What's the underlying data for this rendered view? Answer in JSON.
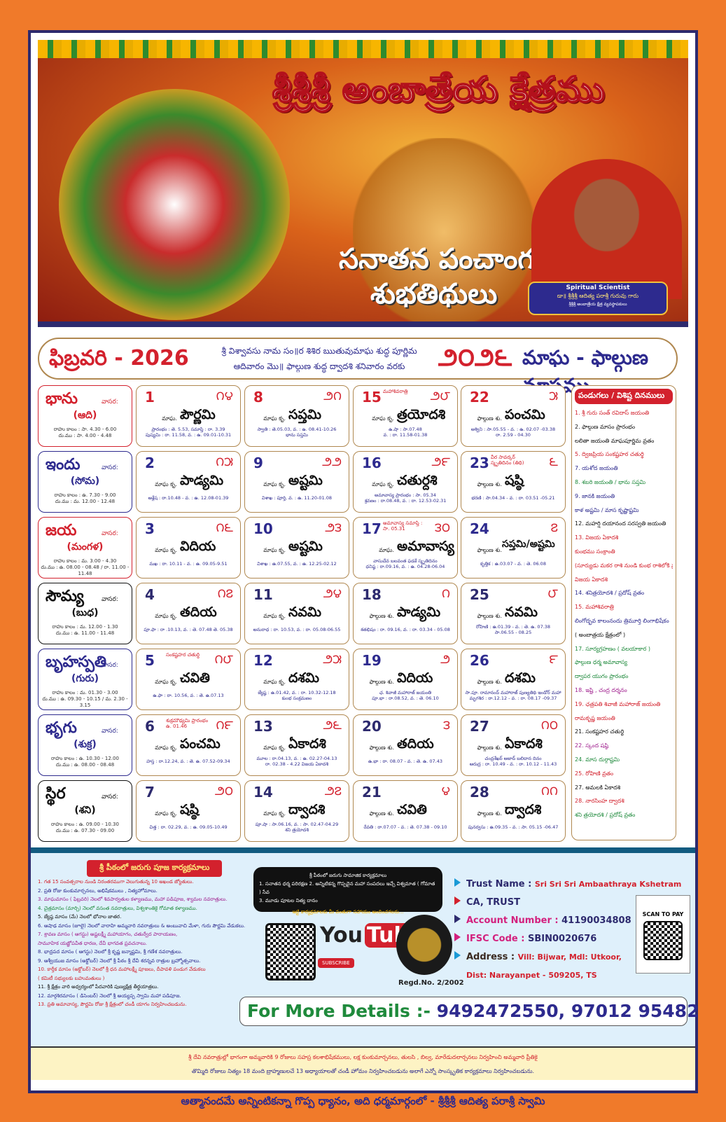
{
  "header": {
    "title": "శ్రీశ్రీశ్రీ అంబాత్రేయ క్షేత్రము",
    "subtitle1": "సనాతన పంచాంగ",
    "subtitle2": "శుభతిథులు",
    "badge_title": "Spiritual Scientist",
    "badge_name": "డా॥ శ్రీశ్రీశ్రీ ఆదిత్య పరాశ్రీ గురువు గారు",
    "badge_role": "శ్రీశ్రీశ్రీ అంబాత్రేయ క్షేత్ర వ్యవస్థాపకులు"
  },
  "month_bar": {
    "month": "ఫిబ్రవరి - 2026",
    "desc1": "శ్రీ విశ్వావసు నామ సం॥ర శిశిర ఋతువుమాఘ శుద్ధ పూర్ణిమ",
    "desc2": "ఆదివారం మొ॥ ఫాల్గుణ శుద్ధ ద్వాదశి శనివారం వరకు",
    "telugu_year": "౨౦౨౬",
    "telugu_months": "మాఘ - ఫాల్గుణ మాసము"
  },
  "weekdays": [
    {
      "name": "భాను",
      "vasara": "వాసర:",
      "short": "(ఆది)",
      "color": "#d3212d",
      "rahu": "రాహు కాలం : సా. 4.30 - 6.00",
      "dur": "దు.ము : సా. 4.00 - 4.48"
    },
    {
      "name": "ఇందు",
      "vasara": "వాసర:",
      "short": "(సోమ)",
      "color": "#2d2a8e",
      "rahu": "రాహు కాలం : ఉ. 7.30 - 9.00",
      "dur": "దు.ము : మ. 12.00 - 12.48"
    },
    {
      "name": "జయ",
      "vasara": "వాసర:",
      "short": "(మంగళ)",
      "color": "#d3212d",
      "rahu": "రాహు కాలం : మ. 3.00 - 4.30",
      "dur": "దు.ము : ఉ. 08.00 - 08.48 / రా. 11.00 - 11.48"
    },
    {
      "name": "సౌమ్య",
      "vasara": "వాసర:",
      "short": "(బుధ)",
      "color": "#111111",
      "rahu": "రాహు కాలం : మ. 12.00 - 1.30",
      "dur": "దు.ము : ఉ. 11.00 - 11.48"
    },
    {
      "name": "బృహస్పతి",
      "vasara": "వాసర:",
      "short": "(గురు)",
      "color": "#2d2a8e",
      "rahu": "రాహు కాలం : మ. 01.30 - 3.00",
      "dur": "దు.ము : ఉ. 09.30 - 10.15 / మ. 2.30 - 3.15"
    },
    {
      "name": "భృగు",
      "vasara": "వాసర:",
      "short": "(శుక్ర)",
      "color": "#2d2a8e",
      "rahu": "రాహు కాలం : ఉ. 10.30 - 12.00",
      "dur": "దు.ము : ఉ. 08.00 - 08.48"
    },
    {
      "name": "స్థిర",
      "vasara": "వాసర:",
      "short": "(శని)",
      "color": "#111111",
      "rahu": "రాహు కాలం : ఉ. 09.00 - 10.30",
      "dur": "దు.ము : ఉ. 07.30 - 09.00"
    }
  ],
  "weeks": [
    [
      {
        "d": "1",
        "t": "౧౪",
        "m": "మాఘ.",
        "tithi": "పౌర్ణమి",
        "note": "",
        "det1": "ప్రారంభం : తె. 5.53, సమాప్తి : రా. 3.39",
        "det2": "పుష్యమి : రా. 11.58, వ. : ఉ. 09.01-10.31"
      },
      {
        "d": "8",
        "t": "౨౧",
        "m": "మాఘ కృ.",
        "tithi": "సప్తమి",
        "note": "",
        "det1": "స్వాతి : తె.05.03, వ. : ఉ. 08.41-10.26",
        "det2": "భాను సప్తమి"
      },
      {
        "d": "15",
        "t": "౨౮",
        "m": "మాఘ కృ.",
        "tithi": "త్రయోదశి",
        "note": "మహాశివరాత్రి",
        "det1": "ఉ.షా : సా.07.48",
        "det2": "వ. : రా. 11.58-01.38"
      },
      {
        "d": "22",
        "t": "౫",
        "m": "ఫాల్గుణ శు.",
        "tithi": "పంచమి",
        "note": "",
        "det1": "అశ్విని : సా.05.55 - వ. : ఉ. 02.07 -03.38",
        "det2": "రా. 2.59 - 04.30"
      }
    ],
    [
      {
        "d": "2",
        "t": "౧౫",
        "m": "మాఘ కృ.",
        "tithi": "పాడ్యమి",
        "note": "",
        "det1": "ఆశ్లేష : రా.10.48 - వ. : ఉ. 12.08-01.39",
        "det2": ""
      },
      {
        "d": "9",
        "t": "౨౨",
        "m": "మాఘ కృ.",
        "tithi": "అష్టమి",
        "note": "",
        "det1": "విశాఖ : పూర్తి, వ. : ఉ. 11.20-01.08",
        "det2": ""
      },
      {
        "d": "16",
        "t": "౨౯",
        "m": "మాఘ కృ.",
        "tithi": "చతుర్దశి",
        "note": "",
        "det1": "అమావాస్య ప్రారంభం : సా. 05.34",
        "det2": "శ్రవణం : రా.08.48, వ. : రా. 12.53-02.31"
      },
      {
        "d": "23",
        "t": "౬",
        "m": "ఫాల్గుణ శు.",
        "tithi": "షష్ఠి",
        "note": "వీర సావర్కర్ స్మృతిదినం (తిథి)",
        "det1": "భరణి : సా.04.34 - వ. : రా. 03.51 -05.21",
        "det2": ""
      }
    ],
    [
      {
        "d": "3",
        "t": "౧౬",
        "m": "మాఘ కృ.",
        "tithi": "విదియ",
        "note": "",
        "det1": "మఖ : రా. 10.11 - వ. : ఉ. 09.05-9.51",
        "det2": ""
      },
      {
        "d": "10",
        "t": "౨౩",
        "m": "మాఘ కృ.",
        "tithi": "అష్టమి",
        "note": "",
        "det1": "విశాఖ : ఉ.07.55, వ. : ఉ. 12.25-02.12",
        "det2": ""
      },
      {
        "d": "17",
        "t": "౩౦",
        "m": "మాఘ.",
        "tithi": "అమావాస్య",
        "note": "అమావాస్య సమాప్తి : సా. 05.31",
        "det1": "వాసుదేవ బలవంత ఫడకే స్మృతిదినం",
        "det2": "ధనిష్ఠ : రా.09.16, వ. : ఉ. 04.28-06.04"
      },
      {
        "d": "24",
        "t": "౭",
        "m": "ఫాల్గుణ శు.",
        "tithi": "సప్తమి/అష్టమి",
        "note": "",
        "det1": "కృత్తిక : ఉ.03.07 - వ. : తె. 06.08",
        "det2": ""
      }
    ],
    [
      {
        "d": "4",
        "t": "౧౭",
        "m": "మాఘ కృ.",
        "tithi": "తదియ",
        "note": "",
        "det1": "పూ.ఫా : రా .10.13, వ. : తె. 07.48 తె. 05.38",
        "det2": ""
      },
      {
        "d": "11",
        "t": "౨౪",
        "m": "మాఘ కృ.",
        "tithi": "నవమి",
        "note": "",
        "det1": "అనురాధ : రా. 10.53, వ. : రా. 05.08-06.55",
        "det2": ""
      },
      {
        "d": "18",
        "t": "౧",
        "m": "ఫాల్గుణ శు.",
        "tithi": "పాడ్యమి",
        "note": "",
        "det1": "శతభిషం : రా. 09.16, వ. : రా. 03.34 - 05.08",
        "det2": ""
      },
      {
        "d": "25",
        "t": "౮",
        "m": "ఫాల్గుణ శు.",
        "tithi": "నవమి",
        "note": "",
        "det1": "రోహిణి : ఉ.01.39 - వ. : తె. ఉ. 07.38",
        "det2": "సా.06.55 - 08.25"
      }
    ],
    [
      {
        "d": "5",
        "t": "౧౮",
        "m": "మాఘ కృ.",
        "tithi": "చవితి",
        "note": "సంకష్టహర చతుర్థి",
        "det1": "ఉ.ఫా : రా. 10.56, వ. : తె. ఉ.07.13",
        "det2": ""
      },
      {
        "d": "12",
        "t": "౨౫",
        "m": "మాఘ కృ.",
        "tithi": "దశమి",
        "note": "",
        "det1": "జ్యేష్ఠ : ఉ.01.42, వ. : రా. 10.32-12.18",
        "det2": "కుంభ సంక్రమణం"
      },
      {
        "d": "19",
        "t": "౨",
        "m": "ఫాల్గుణ శు.",
        "tithi": "విదియ",
        "note": "",
        "det1": "ఛ. శివాజీ మహారాజ్ జయంతి",
        "det2": "పూ.భా : రా.08.52, వ. : తె. 06.10"
      },
      {
        "d": "26",
        "t": "౯",
        "m": "ఫాల్గుణ శు.",
        "tithi": "దశమి",
        "note": "",
        "det1": "సా.పూ. రామానంద్ మహారాజ్ పుణ్యతిథి ఇండోర్ మహా",
        "det2": "మృగశిర : రా.12.12 - వ. : రా. 08.17 -09.37"
      }
    ],
    [
      {
        "d": "6",
        "t": "౧౯",
        "m": "మాఘ కృ.",
        "tithi": "పంచమి",
        "note": "శుక్రమౌఢ్యమి ప్రారంభం ఉ. 01.46",
        "det1": "హస్త : రా.12.24, వ. : తె. ఉ. 07.52-09.34",
        "det2": ""
      },
      {
        "d": "13",
        "t": "౨౬",
        "m": "మాఘ కృ.",
        "tithi": "ఏకాదశి",
        "note": "",
        "det1": "మూల : రా.04.13, వ. : ఉ. 02.27-04.13",
        "det2": "రా. 02.38 - 4.22 విజయ ఏకాదశి"
      },
      {
        "d": "20",
        "t": "౩",
        "m": "ఫాల్గుణ శు.",
        "tithi": "తదియ",
        "note": "",
        "det1": "ఉ.భా : రా. 08.07 - వ. : తె. ఉ. 07.43",
        "det2": ""
      },
      {
        "d": "27",
        "t": "౧౦",
        "m": "ఫాల్గుణ శు.",
        "tithi": "ఏకాదశి",
        "note": "",
        "det1": "చంద్రశేఖర్ ఆజాద్ బలిదాన దినం",
        "det2": "ఆరుద్ర : రా. 10.49 - వ. : రా. 10.12 - 11.43"
      }
    ],
    [
      {
        "d": "7",
        "t": "౨౦",
        "m": "మాఘ కృ.",
        "tithi": "షష్ఠి",
        "note": "",
        "det1": "చిత్త : రా. 02.29, వ. : ఉ. 09.05-10.49",
        "det2": ""
      },
      {
        "d": "14",
        "t": "౨౭",
        "m": "మాఘ కృ.",
        "tithi": "ద్వాదశి",
        "note": "",
        "det1": "పూ.షా : సా.06.16, వ. : సా. 02.47-04.29",
        "det2": "శని త్రయోదశి"
      },
      {
        "d": "21",
        "t": "౪",
        "m": "ఫాల్గుణ శు.",
        "tithi": "చవితి",
        "note": "",
        "det1": "రేవతి : రా.07.07 - వ. : తె. 07.38 - 09.10",
        "det2": ""
      },
      {
        "d": "28",
        "t": "౧౧",
        "m": "ఫాల్గుణ శు.",
        "tithi": "ద్వాదశి",
        "note": "",
        "det1": "పునర్వసు : ఉ.09.35 - వ. : సా. 05.15 -06.47",
        "det2": ""
      }
    ]
  ],
  "festivals": {
    "heading": "పండుగలు / విశిష్ట దినములు",
    "items": [
      {
        "text": "1. శ్రీ గురు సంత్ రవిదాస్ జయంతి",
        "color": "#d3212d"
      },
      {
        "text": "2. ఫాల్గుణ మాసం ప్రారంభం",
        "color": "#111"
      },
      {
        "text": "లలితా జయంతి మాఘపూర్ణిమ వ్రతం",
        "color": "#111"
      },
      {
        "text": "5. ద్విజప్రియ సంకష్టహర చతుర్థి",
        "color": "#d3212d"
      },
      {
        "text": "7. యశోద జయంతి",
        "color": "#2d2a8e"
      },
      {
        "text": "8. శబరి జయంతి / భాను సప్తమి",
        "color": "#1f8a3c"
      },
      {
        "text": "9. జానకి జయంతి",
        "color": "#2d2a8e"
      },
      {
        "text": "కాళ అష్టమి / మాస కృష్ణాష్టమి",
        "color": "#2d2a8e"
      },
      {
        "text": "12. మహర్షి దయానంద సరస్వతి జయంతి",
        "color": "#111"
      },
      {
        "text": "13. విజయ ఏకాదశి",
        "color": "#d3212d"
      },
      {
        "text": "కుంభము సంక్రాంతి",
        "color": "#d3212d"
      },
      {
        "text": "(సూర్యుడు మకర రాశి నుండి కుంభ రాశిలోకి ప్రవేశిస్తాడు)",
        "color": "#d3212d"
      },
      {
        "text": "విజయ ఏకాదశి",
        "color": "#d3212d"
      },
      {
        "text": "14. శనిత్రయోదశి / ప్రదోష్ వ్రతం",
        "color": "#2d2a8e"
      },
      {
        "text": "15. మహాశివరాత్రి",
        "color": "#d3212d"
      },
      {
        "text": "లింగోద్భవ కాలంనందు త్రిమూర్తి లింగాభిషేకం",
        "color": "#2d2a8e"
      },
      {
        "text": "( అంబాత్రయ క్షేత్రంలో )",
        "color": "#111"
      },
      {
        "text": "17. సూర్యగ్రహణం ( వలయాకార )",
        "color": "#1f8a3c"
      },
      {
        "text": "ఫాల్గుణ ధర్మ అమావాస్య",
        "color": "#1f8a3c"
      },
      {
        "text": "ద్వాపర యుగం ప్రారంభం",
        "color": "#1f8a3c"
      },
      {
        "text": "18. ఇష్టి , చంద్ర దర్శనం",
        "color": "#a0208e"
      },
      {
        "text": "19. ఛత్రపతి శివాజీ మహారాజ్ జయంతి",
        "color": "#d3212d"
      },
      {
        "text": "రామకృష్ణ జయంతి",
        "color": "#d3212d"
      },
      {
        "text": "21. సంకష్టహర చతుర్థి",
        "color": "#111"
      },
      {
        "text": "22. స్కంద షష్ఠి",
        "color": "#a0208e"
      },
      {
        "text": "24. మాస దుర్గాష్టమి",
        "color": "#1f8a3c"
      },
      {
        "text": "25. రోహిణి వ్రతం",
        "color": "#d3212d"
      },
      {
        "text": "27. అమలకి ఏకాదశి",
        "color": "#111"
      },
      {
        "text": "28. నారసింహ ద్వాదశి",
        "color": "#d3212d"
      },
      {
        "text": "శని త్రయోదశి / ప్రదోష్ వ్రతం",
        "color": "#1f8a3c"
      }
    ]
  },
  "puja": {
    "heading": "శ్రీ పీఠంలో జరుగు పూజ కార్యక్రమాలు",
    "items": [
      {
        "text": "1. గత 15 సంవత్సరాల నుండి నిరంతరముగా వెలుగుతున్న 10 అఖండ జ్యోతులు.",
        "color": "#d3212d"
      },
      {
        "text": "2. ప్రతి రోజు కుంకుమార్చనలు, అభిషేకములు , నిత్యహోమాలు.",
        "color": "#2d2a8e"
      },
      {
        "text": "3. మాఘమాసం ( ఫిబ్రవరి) నెలలో శివపార్వతుల కళ్యాణము, మహా పడిపూజ, శ్యామల నవరాత్రులు.",
        "color": "#a0208e"
      },
      {
        "text": "4. చైత్రమాసం (మార్చి) నెలలో వసంత నవరాత్రులు, విశ్వశాంతికై గోమాత కళ్యాణము.",
        "color": "#1f8a3c"
      },
      {
        "text": "5. జ్యేష్ఠ మాసం (మే) నెలలో భోనాల జాతర.",
        "color": "#111"
      },
      {
        "text": "6. ఆషాఢ మాసం (జూలై) నెలలో వారాహి అమ్మవారి నవరాత్రులు & అంబువాచి మేళా, గురు పౌర్ణమి వేడుకలు.",
        "color": "#2d2a8e"
      },
      {
        "text": "7. శ్రావణ మాసం ( ఆగస్టు) అష్టలక్ష్మీ మహాయాగం, చతుర్వేద పారాయణం,",
        "color": "#a0208e"
      },
      {
        "text": "సామూహిక యజ్ఞోపవీత ధారణ, దేవీ భాగవత ప్రవచనాలు.",
        "color": "#a0208e"
      },
      {
        "text": "8. భాద్రపద మాసం ( ఆగస్టు) నెలలో శ్రీ కృష్ణ జన్మాష్టమి, శ్రీ గణేశ నవరాత్రులు.",
        "color": "#2d2a8e"
      },
      {
        "text": "9. ఆశ్వీయుజ మాసం (అక్టోబర్) నెలలో శ్రీ పీఠం శ్రీ దేవీ శరన్నవ రాత్రుల బ్రహ్మోత్సవాలు.",
        "color": "#2d2a8e"
      },
      {
        "text": "10. కార్తీక మాసం (అక్టోబర్) నెలలో శ్రీ ధన మహాలక్ష్మీ పూజలు, దీపావళి పండుగ వేడుకలు",
        "color": "#d3212d"
      },
      {
        "text": "( కమిటీ సభ్యులకు బహుమతులు )",
        "color": "#d3212d"
      },
      {
        "text": "11. శ్రీ క్షేత్రం వారి అధ్వర్యంలో పేదవారికి పుణ్యక్షేత్ర తీర్థయాత్రలు.",
        "color": "#111"
      },
      {
        "text": "12. మార్గశిరమాసం ( డిసెంబర్) నెలలో శ్రీ అయ్యప్ప స్వామి మహా పడిపూజ.",
        "color": "#2d2a8e"
      },
      {
        "text": "13. ప్రతి అమావాస్య, పౌర్ణమి రోజు శ్రీ క్షేత్రంలో చండీ యాగం నిర్వహించబడును.",
        "color": "#d3212d"
      }
    ]
  },
  "social": {
    "heading": "శ్రీ పీఠంలో జరుగు సామాజిక కార్యక్రమాలు",
    "line1": "1. సనాతన ధర్మ పరిరక్షణ 2. అన్నిటికన్న గొప్పదైన మహా సంపదలు ఇచ్చే విశ్వమాత ( గోమాత ) సేవ",
    "line2": "3. మూడు పూటల నిత్య దానం",
    "footer": "ఇట్టి కార్యక్రమాలకు మీ వంతుగా సహాయం అందించగలరు..."
  },
  "youtube": {
    "you": "You",
    "tube": "Tube",
    "subscribe": "SUBSCRIBE"
  },
  "regd": "Regd.No. 2/2002",
  "bank": {
    "trust_label": "Trust Name :",
    "trust_value": "Sri Sri Sri Ambaathraya Kshetram",
    "ca": "CA, TRUST",
    "acc_label": "Account Number :",
    "acc_value": "41190034808",
    "ifsc_label": "IFSC Code :",
    "ifsc_value": "SBIN0020676",
    "addr_label": "Address :",
    "addr_value": "Vill: Bijwar, Mdl: Utkoor,",
    "addr_value2": "Dist: Narayanpet - 509205, TS"
  },
  "scan_label": "SCAN TO PAY",
  "details": {
    "label": "For More Details :-",
    "numbers": "9492472550, 97012 95482"
  },
  "navratri": {
    "line1": "శ్రీ దేవి నవరాత్రుల్లో భాగంగా అమ్మవారికి 9 రోజులు సహస్ర కలశాభిషేకములు, లక్ష కుంకుమార్చనలు, తులసి , బిల్వ, మారేడుదలార్చనలు నిర్వహించి అమ్మవారి ప్రీతికై",
    "line2": "తొమ్మిది రోజులు నిత్యం 18 మంది బ్రాహ్మణులచే 13 అధ్యాయాలతో చండీ హోమం నిర్వహించబడును అలాగే ఎన్నో సాంస్కృతిక కార్యక్రమాలు నిర్వహించబడును."
  },
  "footer": "ఆత్మానందమే అన్నింటికన్నా గొప్ప ధ్యానం, అది ధర్మమార్గంలో - శ్రీశ్రీశ్రీ ఆదిత్య పరాశ్రీ స్వామి"
}
